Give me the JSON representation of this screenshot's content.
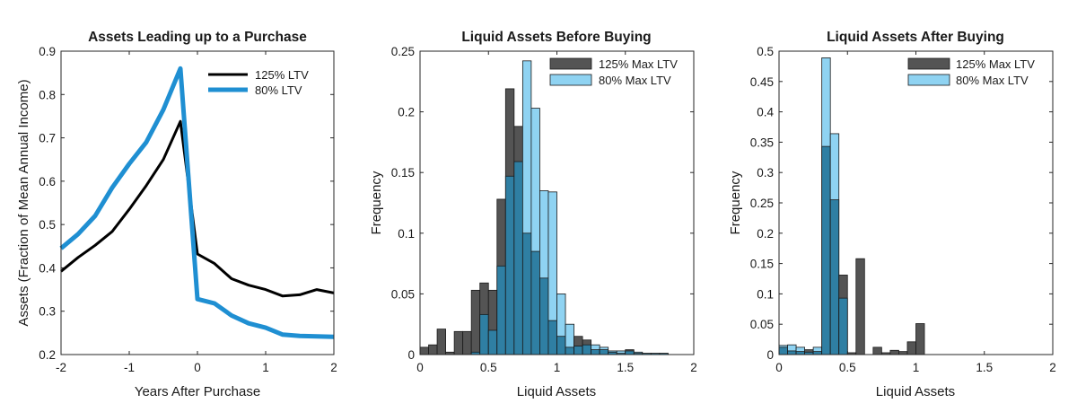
{
  "colors": {
    "black_line": "#000000",
    "blue_line": "#1f8fd2",
    "dark_bar": "#545454",
    "light_bar": "#8fd3f2",
    "overlap_bar": "#2f7fa3",
    "axes": "#262626"
  },
  "chart_data": [
    {
      "type": "line",
      "title": "Assets Leading up to a Purchase",
      "xlabel": "Years After Purchase",
      "ylabel": "Assets (Fraction of Mean Annual Income)",
      "xlim": [
        -2,
        2
      ],
      "ylim": [
        0.2,
        0.9
      ],
      "xticks": [
        -2,
        -1,
        0,
        1,
        2
      ],
      "xtick_labels": [
        "-2",
        "-1",
        "0",
        "1",
        "2"
      ],
      "yticks": [
        0.2,
        0.3,
        0.4,
        0.5,
        0.6,
        0.7,
        0.8,
        0.9
      ],
      "ytick_labels": [
        "0.2",
        "0.3",
        "0.4",
        "0.5",
        "0.6",
        "0.7",
        "0.8",
        "0.9"
      ],
      "grid": false,
      "legend_position": "top-right",
      "series": [
        {
          "name": "125% LTV",
          "color_key": "black_line",
          "x": [
            -2,
            -1.75,
            -1.5,
            -1.25,
            -1,
            -0.75,
            -0.5,
            -0.25,
            0,
            0.25,
            0.5,
            0.75,
            1,
            1.25,
            1.5,
            1.75,
            2
          ],
          "y": [
            0.392,
            0.424,
            0.452,
            0.484,
            0.535,
            0.59,
            0.65,
            0.738,
            0.432,
            0.41,
            0.375,
            0.36,
            0.35,
            0.335,
            0.338,
            0.35,
            0.342
          ]
        },
        {
          "name": "80% LTV",
          "color_key": "blue_line",
          "x": [
            -2,
            -1.75,
            -1.5,
            -1.25,
            -1,
            -0.75,
            -0.5,
            -0.25,
            0,
            0.25,
            0.5,
            0.75,
            1,
            1.25,
            1.5,
            1.75,
            2
          ],
          "y": [
            0.445,
            0.478,
            0.52,
            0.585,
            0.64,
            0.69,
            0.765,
            0.86,
            0.328,
            0.318,
            0.29,
            0.272,
            0.262,
            0.246,
            0.243,
            0.242,
            0.241
          ]
        }
      ]
    },
    {
      "type": "bar",
      "title": "Liquid Assets Before Buying",
      "xlabel": "Liquid Assets",
      "ylabel": "Frequency",
      "xlim": [
        0,
        2
      ],
      "ylim": [
        0,
        0.25
      ],
      "xticks": [
        0,
        0.5,
        1,
        1.5,
        2
      ],
      "xtick_labels": [
        "0",
        "0.5",
        "1",
        "1.5",
        "2"
      ],
      "yticks": [
        0,
        0.05,
        0.1,
        0.15,
        0.2,
        0.25
      ],
      "ytick_labels": [
        "0",
        "0.05",
        "0.1",
        "0.15",
        "0.2",
        "0.25"
      ],
      "grid": false,
      "legend_position": "top-right",
      "bin_start": 0,
      "bin_width": 0.0625,
      "series": [
        {
          "name": "125% Max LTV",
          "color_key": "dark_bar",
          "values": [
            0.006,
            0.008,
            0.021,
            0.002,
            0.019,
            0.019,
            0.053,
            0.059,
            0.053,
            0.128,
            0.219,
            0.188,
            0.1,
            0.085,
            0.063,
            0.028,
            0.015,
            0.006,
            0.015,
            0.012,
            0.004,
            0.004,
            0.002,
            0.001,
            0.004,
            0.001,
            0.001,
            0.001,
            0.001,
            0.0,
            0.0,
            0.0,
            0.0,
            0.0,
            0.0,
            0.0,
            0.0,
            0.0,
            0.0,
            0.0
          ]
        },
        {
          "name": "80% Max LTV",
          "color_key": "light_bar",
          "values": [
            0.0,
            0.0,
            0.0,
            0.0,
            0.0,
            0.0,
            0.002,
            0.033,
            0.02,
            0.073,
            0.147,
            0.159,
            0.242,
            0.203,
            0.135,
            0.134,
            0.05,
            0.025,
            0.007,
            0.008,
            0.008,
            0.006,
            0.003,
            0.003,
            0.003,
            0.002,
            0.001,
            0.001,
            0.001,
            0.0,
            0.0,
            0.0,
            0.0,
            0.0,
            0.0,
            0.0,
            0.0,
            0.0,
            0.0,
            0.0
          ]
        }
      ]
    },
    {
      "type": "bar",
      "title": "Liquid Assets After Buying",
      "xlabel": "Liquid Assets",
      "ylabel": "Frequency",
      "xlim": [
        0,
        2
      ],
      "ylim": [
        0,
        0.5
      ],
      "xticks": [
        0,
        0.5,
        1,
        1.5,
        2
      ],
      "xtick_labels": [
        "0",
        "0.5",
        "1",
        "1.5",
        "2"
      ],
      "yticks": [
        0,
        0.05,
        0.1,
        0.15,
        0.2,
        0.25,
        0.3,
        0.35,
        0.4,
        0.45,
        0.5
      ],
      "ytick_labels": [
        "0",
        "0.05",
        "0.1",
        "0.15",
        "0.2",
        "0.25",
        "0.3",
        "0.35",
        "0.4",
        "0.45",
        "0.5"
      ],
      "grid": false,
      "legend_position": "top-right",
      "bin_start": 0,
      "bin_width": 0.0625,
      "series": [
        {
          "name": "125% Max LTV",
          "color_key": "dark_bar",
          "values": [
            0.012,
            0.006,
            0.005,
            0.008,
            0.005,
            0.343,
            0.255,
            0.131,
            0.003,
            0.158,
            0.0,
            0.012,
            0.003,
            0.007,
            0.005,
            0.021,
            0.051,
            0.0,
            0.0,
            0.0,
            0.0,
            0.0,
            0.0,
            0.0,
            0.0,
            0.0,
            0.0,
            0.0,
            0.0,
            0.0,
            0.0,
            0.0
          ]
        },
        {
          "name": "80% Max LTV",
          "color_key": "light_bar",
          "values": [
            0.015,
            0.016,
            0.012,
            0.004,
            0.012,
            0.489,
            0.364,
            0.093,
            0.0,
            0.0,
            0.0,
            0.0,
            0.0,
            0.0,
            0.0,
            0.0,
            0.0,
            0.0,
            0.0,
            0.0,
            0.0,
            0.0,
            0.0,
            0.0,
            0.0,
            0.0,
            0.0,
            0.0,
            0.0,
            0.0,
            0.0,
            0.0
          ]
        }
      ]
    }
  ]
}
